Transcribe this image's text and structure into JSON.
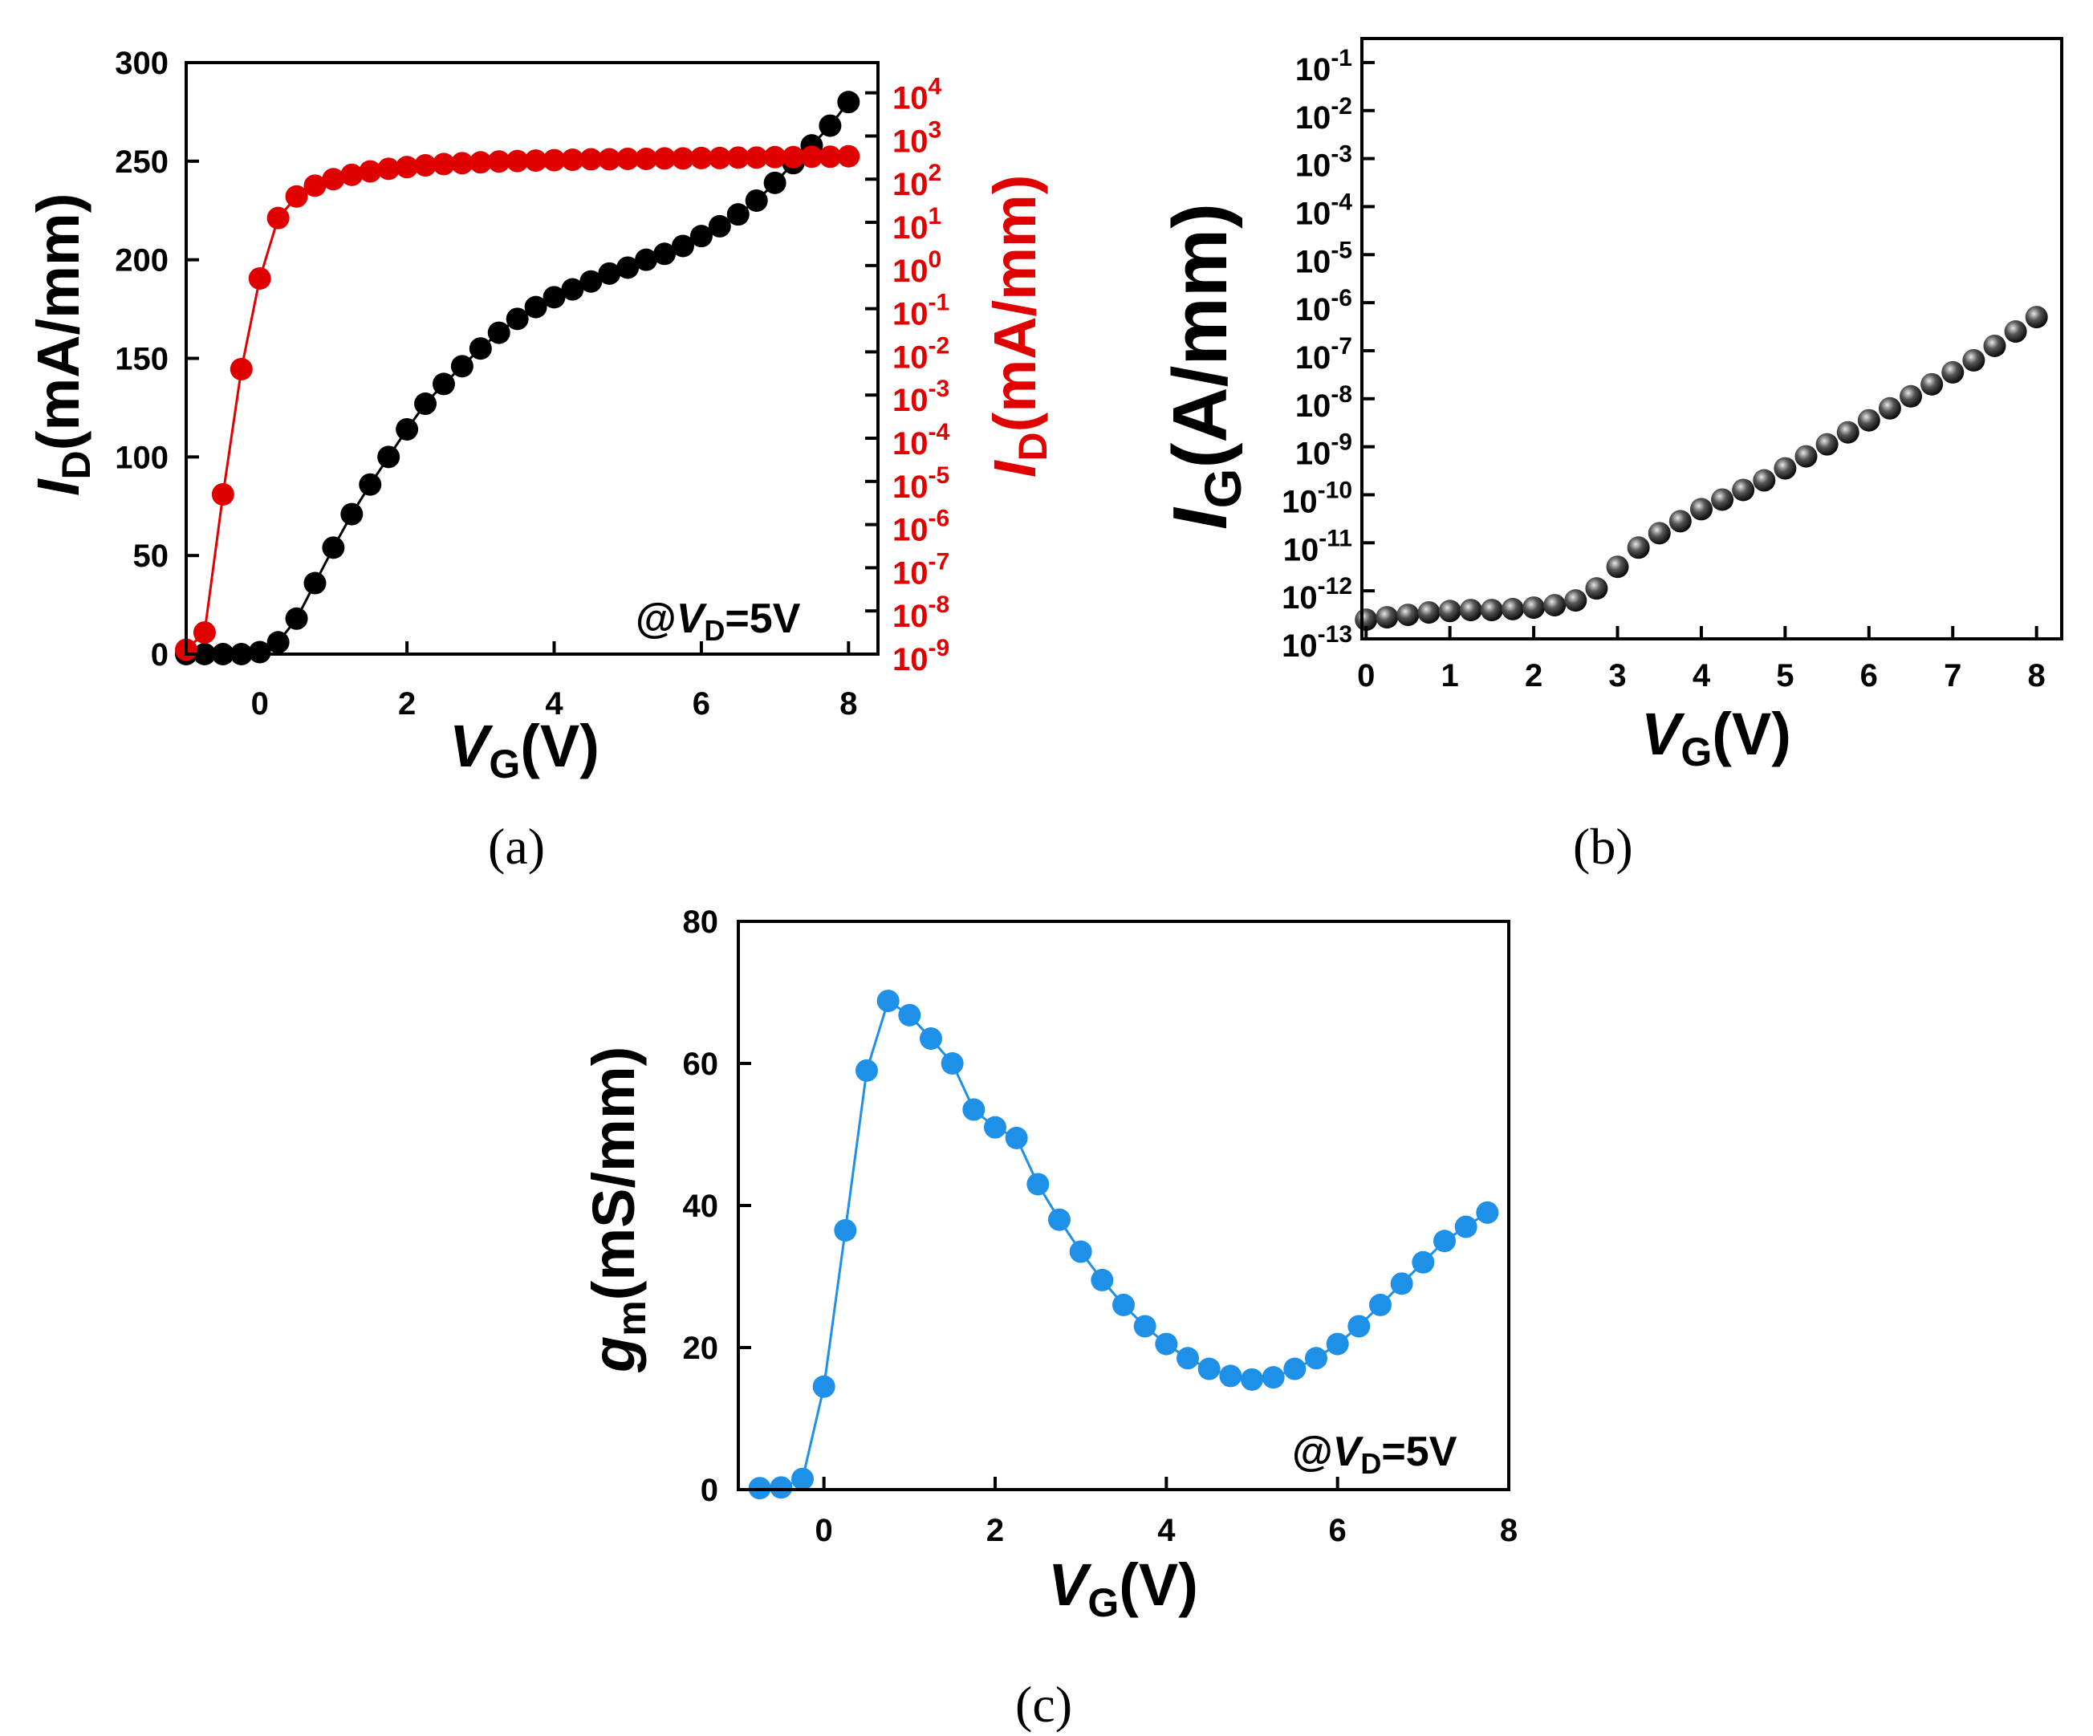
{
  "figure": {
    "captions": {
      "a": "(a)",
      "b": "(b)",
      "c": "(c)"
    }
  },
  "chart_data": [
    {
      "panel": "a",
      "type": "scatter",
      "title": "",
      "xlabel": {
        "var": "V",
        "sub": "G",
        "unit": "(V)"
      },
      "ylabel_left": {
        "var": "I",
        "sub": "D",
        "unit": "(mA/mm)"
      },
      "ylabel_right": {
        "var": "I",
        "sub": "D",
        "unit": "(mA/mm)"
      },
      "xlim": [
        -1,
        8.4
      ],
      "ylim_left": [
        0,
        300
      ],
      "ylim_right_log10": [
        -9,
        4.7
      ],
      "x_ticks": [
        "0",
        "2",
        "4",
        "6",
        "8"
      ],
      "y_left_ticks": [
        "0",
        "50",
        "100",
        "150",
        "200",
        "250",
        "300"
      ],
      "y_right_ticks": [
        {
          "base": "10",
          "exp": "-9"
        },
        {
          "base": "10",
          "exp": "-8"
        },
        {
          "base": "10",
          "exp": "-7"
        },
        {
          "base": "10",
          "exp": "-6"
        },
        {
          "base": "10",
          "exp": "-5"
        },
        {
          "base": "10",
          "exp": "-4"
        },
        {
          "base": "10",
          "exp": "-3"
        },
        {
          "base": "10",
          "exp": "-2"
        },
        {
          "base": "10",
          "exp": "-1"
        },
        {
          "base": "10",
          "exp": "0"
        },
        {
          "base": "10",
          "exp": "1"
        },
        {
          "base": "10",
          "exp": "2"
        },
        {
          "base": "10",
          "exp": "3"
        },
        {
          "base": "10",
          "exp": "4"
        }
      ],
      "annotation": {
        "prefix": "@",
        "var": "V",
        "sub": "D",
        "suffix": "=5V"
      },
      "series": [
        {
          "name": "I_D linear",
          "axis": "left",
          "color": "#000000",
          "x": [
            -1.0,
            -0.75,
            -0.5,
            -0.25,
            0.0,
            0.25,
            0.5,
            0.75,
            1.0,
            1.25,
            1.5,
            1.75,
            2.0,
            2.25,
            2.5,
            2.75,
            3.0,
            3.25,
            3.5,
            3.75,
            4.0,
            4.25,
            4.5,
            4.75,
            5.0,
            5.25,
            5.5,
            5.75,
            6.0,
            6.25,
            6.5,
            6.75,
            7.0,
            7.25,
            7.5,
            7.75,
            8.0
          ],
          "values": [
            0,
            0,
            0,
            0,
            1,
            6,
            18,
            36,
            54,
            71,
            86,
            100,
            114,
            127,
            137,
            146,
            155,
            163,
            170,
            176,
            181,
            185,
            189,
            193,
            196,
            200,
            203,
            207,
            212,
            217,
            223,
            230,
            239,
            249,
            258,
            268,
            280
          ]
        },
        {
          "name": "I_D log",
          "axis": "right",
          "color": "#e00000",
          "x": [
            -1.0,
            -0.75,
            -0.5,
            -0.25,
            0.0,
            0.25,
            0.5,
            0.75,
            1.0,
            1.25,
            1.5,
            1.75,
            2.0,
            2.25,
            2.5,
            2.75,
            3.0,
            3.25,
            3.5,
            3.75,
            4.0,
            4.25,
            4.5,
            4.75,
            5.0,
            5.25,
            5.5,
            5.75,
            6.0,
            6.25,
            6.5,
            6.75,
            7.0,
            7.25,
            7.5,
            7.75,
            8.0
          ],
          "log10_values": [
            -8.9,
            -8.5,
            -5.3,
            -2.4,
            -0.3,
            1.1,
            1.6,
            1.85,
            2.0,
            2.1,
            2.18,
            2.24,
            2.28,
            2.32,
            2.35,
            2.37,
            2.39,
            2.41,
            2.42,
            2.43,
            2.44,
            2.45,
            2.46,
            2.46,
            2.47,
            2.47,
            2.48,
            2.48,
            2.49,
            2.49,
            2.5,
            2.5,
            2.51,
            2.51,
            2.52,
            2.52,
            2.53
          ]
        }
      ]
    },
    {
      "panel": "b",
      "type": "scatter",
      "title": "",
      "xlabel": {
        "var": "V",
        "sub": "G",
        "unit": "(V)"
      },
      "ylabel": {
        "var": "I",
        "sub": "G",
        "unit": "(A/mm)"
      },
      "xlim": [
        -0.05,
        8.3
      ],
      "ylim_log10": [
        -13,
        -0.5
      ],
      "x_ticks": [
        "0",
        "1",
        "2",
        "3",
        "4",
        "5",
        "6",
        "7",
        "8"
      ],
      "y_ticks": [
        {
          "base": "10",
          "exp": "-13"
        },
        {
          "base": "10",
          "exp": "-12"
        },
        {
          "base": "10",
          "exp": "-11"
        },
        {
          "base": "10",
          "exp": "-10"
        },
        {
          "base": "10",
          "exp": "-9"
        },
        {
          "base": "10",
          "exp": "-8"
        },
        {
          "base": "10",
          "exp": "-7"
        },
        {
          "base": "10",
          "exp": "-6"
        },
        {
          "base": "10",
          "exp": "-5"
        },
        {
          "base": "10",
          "exp": "-4"
        },
        {
          "base": "10",
          "exp": "-3"
        },
        {
          "base": "10",
          "exp": "-2"
        },
        {
          "base": "10",
          "exp": "-1"
        }
      ],
      "series": [
        {
          "name": "I_G",
          "color": "#1a1a1a",
          "x": [
            0.0,
            0.25,
            0.5,
            0.75,
            1.0,
            1.25,
            1.5,
            1.75,
            2.0,
            2.25,
            2.5,
            2.75,
            3.0,
            3.25,
            3.5,
            3.75,
            4.0,
            4.25,
            4.5,
            4.75,
            5.0,
            5.25,
            5.5,
            5.75,
            6.0,
            6.25,
            6.5,
            6.75,
            7.0,
            7.25,
            7.5,
            7.75,
            8.0
          ],
          "log10_values": [
            -12.6,
            -12.55,
            -12.5,
            -12.45,
            -12.42,
            -12.4,
            -12.4,
            -12.38,
            -12.35,
            -12.3,
            -12.2,
            -11.95,
            -11.5,
            -11.1,
            -10.8,
            -10.55,
            -10.3,
            -10.1,
            -9.9,
            -9.7,
            -9.45,
            -9.2,
            -8.95,
            -8.7,
            -8.45,
            -8.2,
            -7.95,
            -7.7,
            -7.45,
            -7.2,
            -6.9,
            -6.6,
            -6.3
          ]
        }
      ]
    },
    {
      "panel": "c",
      "type": "line",
      "title": "",
      "xlabel": {
        "var": "V",
        "sub": "G",
        "unit": "(V)"
      },
      "ylabel": {
        "var": "g",
        "sub": "m",
        "unit": "(mS/mm)"
      },
      "xlim": [
        -1,
        8.0
      ],
      "ylim": [
        0,
        80
      ],
      "x_ticks": [
        "0",
        "2",
        "4",
        "6",
        "8"
      ],
      "y_ticks": [
        "0",
        "20",
        "40",
        "60",
        "80"
      ],
      "annotation": {
        "prefix": "@",
        "var": "V",
        "sub": "D",
        "suffix": "=5V"
      },
      "series": [
        {
          "name": "g_m",
          "color": "#1e90e8",
          "x": [
            -0.75,
            -0.5,
            -0.25,
            0.0,
            0.25,
            0.5,
            0.75,
            1.0,
            1.25,
            1.5,
            1.75,
            2.0,
            2.25,
            2.5,
            2.75,
            3.0,
            3.25,
            3.5,
            3.75,
            4.0,
            4.25,
            4.5,
            4.75,
            5.0,
            5.25,
            5.5,
            5.75,
            6.0,
            6.25,
            6.5,
            6.75,
            7.0,
            7.25,
            7.5,
            7.75
          ],
          "values": [
            0.2,
            0.3,
            1.5,
            14.5,
            36.5,
            59,
            68.8,
            66.8,
            63.5,
            60,
            53.5,
            51,
            49.5,
            43,
            38,
            33.5,
            29.5,
            26,
            23,
            20.5,
            18.5,
            17,
            16,
            15.5,
            15.8,
            17,
            18.5,
            20.5,
            23,
            26,
            29,
            32,
            35,
            37,
            39
          ]
        }
      ]
    }
  ]
}
